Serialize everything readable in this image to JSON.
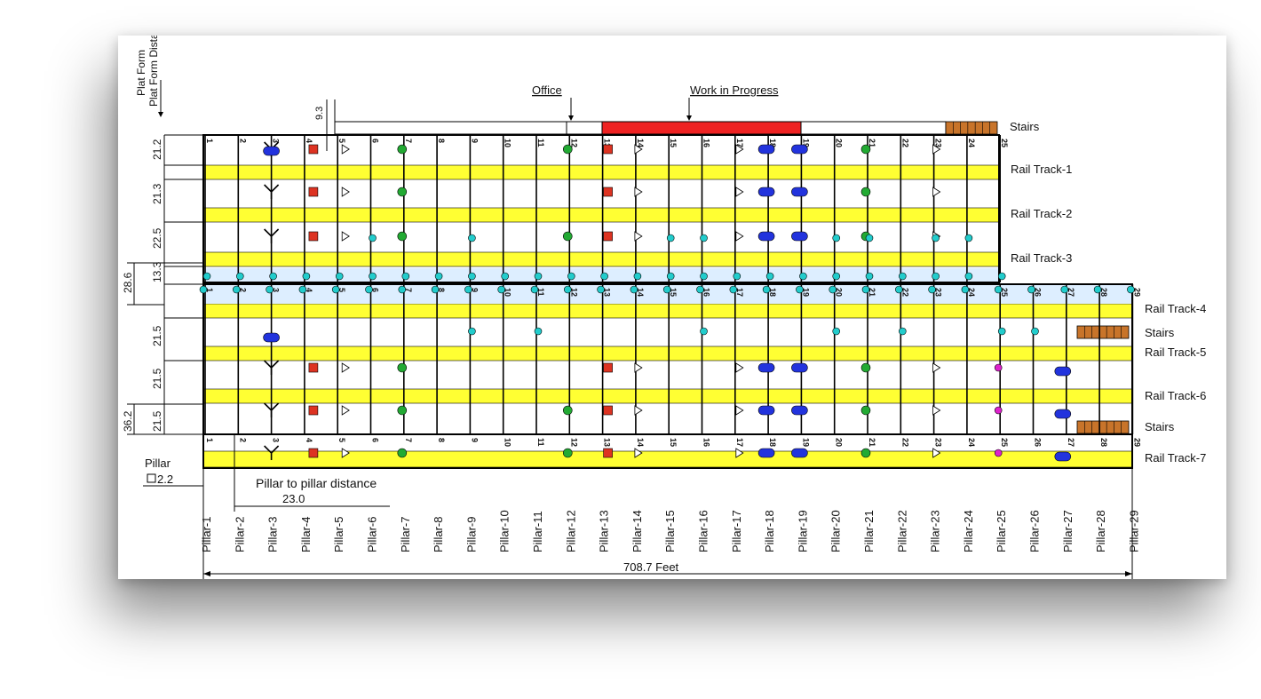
{
  "header": {
    "platform_distance_label": "Plat Form Distance",
    "office_label": "Office",
    "wip_label": "Work in Progress",
    "offset_label": "9.3"
  },
  "right_labels": {
    "stairs_top": "Stairs",
    "track1": "Rail Track-1",
    "track2": "Rail Track-2",
    "track3": "Rail Track-3",
    "track4": "Rail Track-4",
    "stairs_mid": "Stairs",
    "track5": "Rail Track-5",
    "track6": "Rail Track-6",
    "stairs_bottom": "Stairs",
    "track7": "Rail Track-7"
  },
  "left_dims": {
    "d1": "21.2",
    "d2": "21.3",
    "d3": "22.5",
    "d4": "13.3",
    "d_outer": "28.6",
    "d5": "21.5",
    "d6": "21.5",
    "d7": "21.5",
    "d_bottom": "36.2"
  },
  "legend": {
    "pillar_label": "Pillar",
    "pillar_size": "2.2",
    "spacing_label": "Pillar to pillar distance",
    "spacing_value": "23.0",
    "total_length": "708.7 Feet"
  },
  "pillar_numbers": [
    "1",
    "2",
    "3",
    "4",
    "5",
    "6",
    "7",
    "8",
    "9",
    "10",
    "11",
    "12",
    "13",
    "14",
    "15",
    "16",
    "17",
    "18",
    "19",
    "20",
    "21",
    "22",
    "23",
    "24",
    "25",
    "26",
    "27",
    "28",
    "29"
  ],
  "pillar_labels": [
    "Pillar-1",
    "Pillar-2",
    "Pillar-3",
    "Pillar-4",
    "Pillar-5",
    "Pillar-6",
    "Pillar-7",
    "Pillar-8",
    "Pillar-9",
    "Pillar-10",
    "Pillar-11",
    "Pillar-12",
    "Pillar-13",
    "Pillar-14",
    "Pillar-15",
    "Pillar-16",
    "Pillar-17",
    "Pillar-18",
    "Pillar-19",
    "Pillar-20",
    "Pillar-21",
    "Pillar-22",
    "Pillar-23",
    "Pillar-24",
    "Pillar-25",
    "Pillar-26",
    "Pillar-27",
    "Pillar-28",
    "Pillar-29"
  ],
  "colors": {
    "track": "#ffff33",
    "walkway": "#ddeeff",
    "work": "#ee2222",
    "stairs": "#c8742a",
    "green": "#22aa33",
    "red": "#dd3322",
    "blue": "#2233dd",
    "cyan": "#22cccc",
    "magenta": "#dd22cc"
  }
}
